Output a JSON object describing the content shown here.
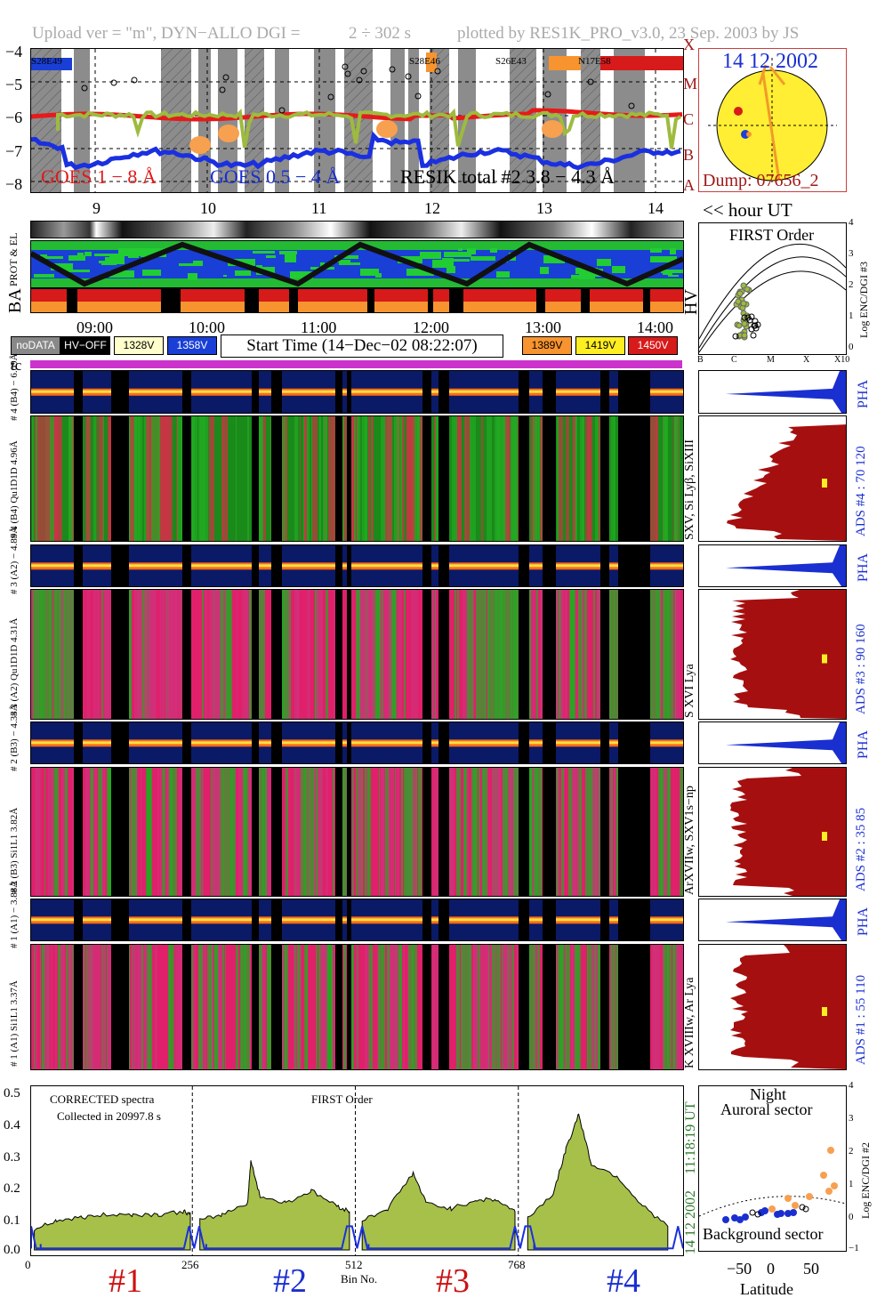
{
  "header": {
    "upload": "Upload ver = \"m\", DYN−ALLO DGI =",
    "dgi": "2 ÷ 302 s",
    "plotted": "plotted by RES1K_PRO_v3.0, 23 Sep. 2003 by JS"
  },
  "goes": {
    "yticks": [
      "−4",
      "−5",
      "−6",
      "−7",
      "−8"
    ],
    "class_letters": [
      "X",
      "M",
      "C",
      "B",
      "A"
    ],
    "regions": [
      "S28E49",
      "S28E46",
      "S26E43",
      "N17E58"
    ],
    "region_colors": [
      "#1a3fd6",
      "#f7942f",
      "#f7942f",
      "#d71a1a"
    ],
    "label_red": "GOES 1 − 8 Å",
    "label_blue": "GOES 0.5 − 4 Å",
    "label_black": "RESIK total #2  3.8 − 4.3 Å",
    "hours": [
      "9",
      "10",
      "11",
      "12",
      "13",
      "14"
    ],
    "hour_ut": "<< hour UT"
  },
  "sun": {
    "date": "14 12 2002",
    "dump": "Dump: 07656_2"
  },
  "strips": {
    "prot_el": "PROT & EL",
    "ba": "BA",
    "hv": "HV"
  },
  "time_axis": {
    "labels": [
      "09:00",
      "10:00",
      "11:00",
      "12:00",
      "13:00",
      "14:00"
    ],
    "start_time": "Start Time (14−Dec−02 08:22:07)",
    "tc": "tc"
  },
  "hv_legend": [
    {
      "label": "noDATA",
      "bg": "#888888",
      "fg": "#ffffff"
    },
    {
      "label": "HV−OFF",
      "bg": "#000000",
      "fg": "#ffffff"
    },
    {
      "label": "1328V",
      "bg": "#ffffcc",
      "fg": "#000000"
    },
    {
      "label": "1358V",
      "bg": "#1a3fd6",
      "fg": "#ffffff"
    },
    {
      "label": "1389V",
      "bg": "#f7942f",
      "fg": "#000000"
    },
    {
      "label": "1419V",
      "bg": "#ffee22",
      "fg": "#000000"
    },
    {
      "label": "1450V",
      "bg": "#d71a1a",
      "fg": "#ffffff"
    }
  ],
  "first_order": {
    "title": "FIRST Order",
    "ylabel": "Log ENC/DGI #3",
    "yticks": [
      "4",
      "3",
      "2",
      "1",
      "0"
    ],
    "xticks": [
      "B",
      "C",
      "M",
      "X",
      "X10"
    ]
  },
  "channels": [
    {
      "pha_label": "# 4 (B4) − 6.09Å",
      "ads_left": "# 4 (B4) Qu1D1D 4.96Å",
      "side": "SXV, Si Lyβ, SiXIII",
      "ads_right": "ADS #4 :  70 120"
    },
    {
      "pha_label": "# 3 (A2) − 4.89Å",
      "ads_left": "# 3 (A2) Qu1D1D 4.31Å",
      "side": "S XVI Lya",
      "ads_right": "ADS #3 :  90 160"
    },
    {
      "pha_label": "# 2 (B3) − 4.33Å",
      "ads_left": "# 2 (B3) Si1L1 3.82Å",
      "side": "ArXVIIw, SXV1s−np",
      "ads_right": "ADS #2 :  35 85"
    },
    {
      "pha_label": "# 1 (A1) − 3.88Å",
      "ads_left": "# 1 (A1) Si1L1 3.37Å",
      "side": "K XVIIIw, Ar Lya",
      "ads_right": "ADS #1 :  55 110"
    }
  ],
  "pha": "PHA",
  "spectrum": {
    "note1": "CORRECTED spectra",
    "note2": "Collected in 20997.8 s",
    "order": "FIRST Order",
    "yticks": [
      "0.5",
      "0.4",
      "0.3",
      "0.2",
      "0.1",
      "0.0"
    ],
    "xticks": [
      "0",
      "256",
      "512",
      "768"
    ],
    "xlabel": "Bin No.",
    "side_time": "11:18:19 UT",
    "side_date": "14 12 2002",
    "channel_labels": [
      "#1",
      "#2",
      "#3",
      "#4"
    ],
    "channel_colors": [
      "#cc1111",
      "#1a2fd0",
      "#cc1111",
      "#1a2fd0"
    ]
  },
  "orbit": {
    "night": "Night",
    "auroral": "Auroral sector",
    "background": "Background sector",
    "xlabel": "Latitude",
    "ylabel": "Log ENC/DGI #2",
    "xticks": [
      "−50",
      "0",
      "50"
    ],
    "yticks": [
      "4",
      "3",
      "2",
      "1",
      "0",
      "−1"
    ]
  },
  "chart_data": {
    "type": "line",
    "title": "FIRST Order",
    "xlabel": "Bin No.",
    "ylabel": "",
    "xlim": [
      0,
      1024
    ],
    "ylim": [
      0,
      0.53
    ],
    "series": [
      {
        "name": "#1",
        "x": [
          5,
          40,
          80,
          120,
          160,
          200,
          240,
          250
        ],
        "values": [
          0.07,
          0.1,
          0.11,
          0.12,
          0.12,
          0.12,
          0.13,
          0.12
        ]
      },
      {
        "name": "#2",
        "x": [
          265,
          300,
          340,
          345,
          360,
          400,
          440,
          480,
          500
        ],
        "values": [
          0.1,
          0.12,
          0.16,
          0.3,
          0.18,
          0.16,
          0.2,
          0.15,
          0.13
        ]
      },
      {
        "name": "#3",
        "x": [
          520,
          560,
          600,
          620,
          660,
          700,
          730,
          760
        ],
        "values": [
          0.1,
          0.14,
          0.26,
          0.16,
          0.14,
          0.17,
          0.17,
          0.13
        ]
      },
      {
        "name": "#4",
        "x": [
          780,
          820,
          840,
          860,
          880,
          920,
          960,
          1000
        ],
        "values": [
          0.11,
          0.19,
          0.34,
          0.46,
          0.29,
          0.25,
          0.15,
          0.08
        ]
      }
    ]
  }
}
